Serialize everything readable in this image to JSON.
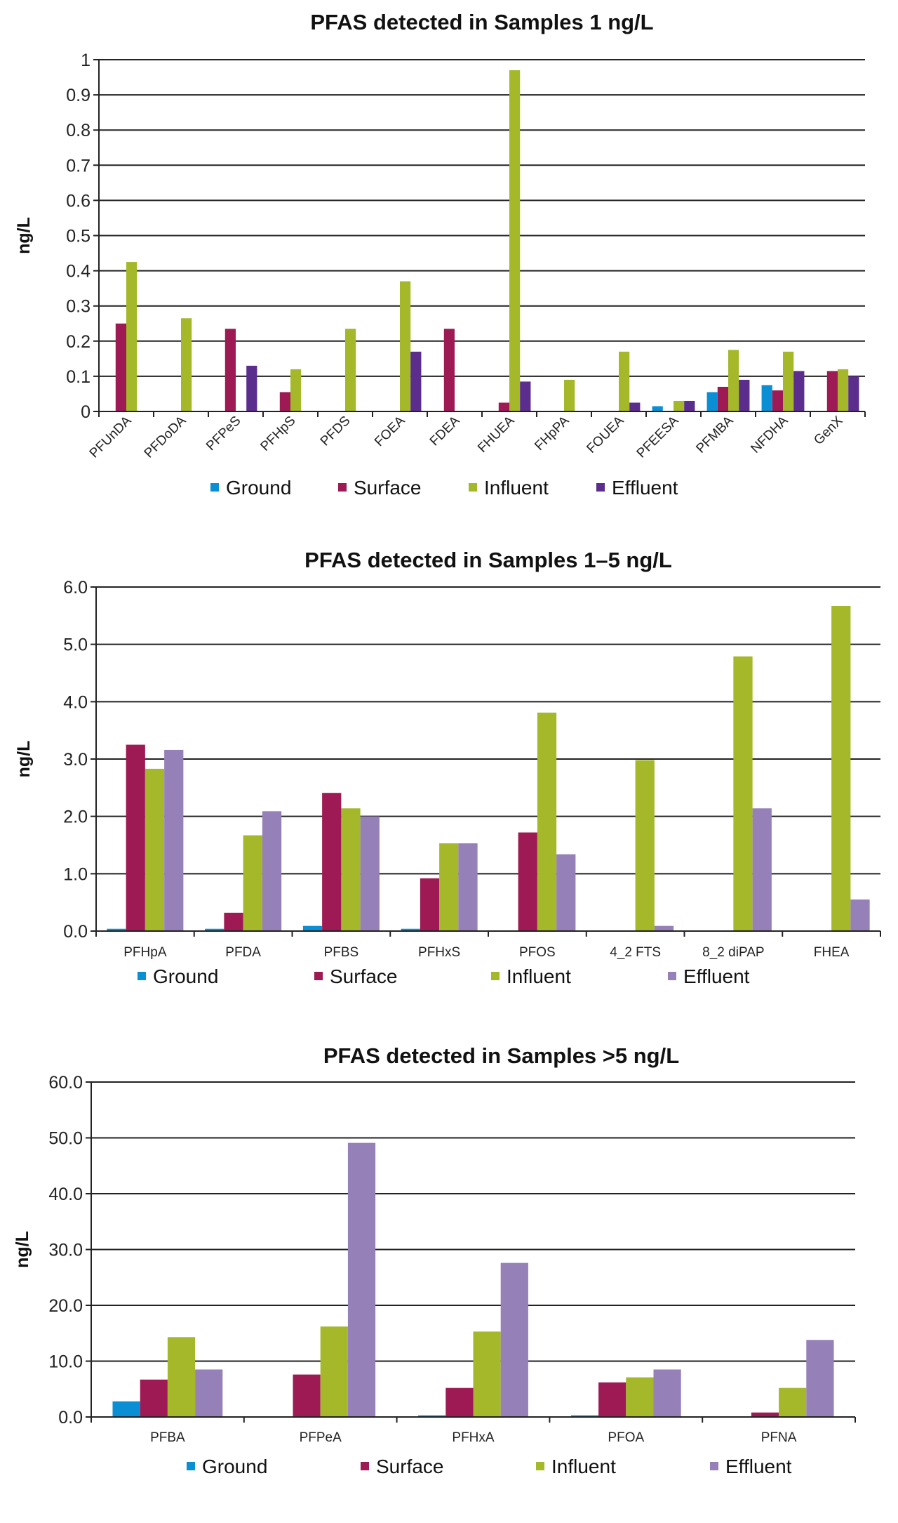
{
  "chart_data": [
    {
      "type": "bar",
      "title": "PFAS detected in Samples 1 ng/L",
      "ylabel": "ng/L",
      "ylim": [
        0,
        1
      ],
      "ytick_labels": [
        "0",
        "0.1",
        "0.2",
        "0.3",
        "0.4",
        "0.5",
        "0.6",
        "0.7",
        "0.8",
        "0.9",
        "1"
      ],
      "grid": true,
      "legend": "bottom",
      "x_label_rotation": "diagonal",
      "categories": [
        "PFUnDA",
        "PFDoDA",
        "PFPeS",
        "PFHpS",
        "PFDS",
        "FOEA",
        "FDEA",
        "FHUEA",
        "FHpPA",
        "FOUEA",
        "PFEESA",
        "PFMBA",
        "NFDHA",
        "GenX"
      ],
      "series": [
        {
          "name": "Ground",
          "color": "#0a8fd4",
          "values": [
            0,
            0,
            0,
            0,
            0,
            0,
            0,
            0,
            0,
            0,
            0.015,
            0.055,
            0.075,
            0
          ]
        },
        {
          "name": "Surface",
          "color": "#9e1a54",
          "values": [
            0.25,
            0,
            0.235,
            0.055,
            0,
            0,
            0.235,
            0.025,
            0,
            0,
            0,
            0.07,
            0.06,
            0.115
          ]
        },
        {
          "name": "Influent",
          "color": "#a4b82a",
          "values": [
            0.425,
            0.265,
            0,
            0.12,
            0.235,
            0.37,
            0,
            0.97,
            0.09,
            0.17,
            0.03,
            0.175,
            0.17,
            0.12
          ]
        },
        {
          "name": "Effluent",
          "color": "#5b2d8c",
          "values": [
            0,
            0,
            0.13,
            0,
            0,
            0.17,
            0,
            0.085,
            0,
            0.025,
            0.03,
            0.09,
            0.115,
            0.1
          ]
        }
      ]
    },
    {
      "type": "bar",
      "title": "PFAS detected in Samples 1–5  ng/L",
      "ylabel": "ng/L",
      "ylim": [
        0,
        6
      ],
      "ytick_labels": [
        "0.0",
        "1.0",
        "2.0",
        "3.0",
        "4.0",
        "5.0",
        "6.0"
      ],
      "grid": true,
      "legend": "bottom",
      "categories": [
        "PFHpA",
        "PFDA",
        "PFBS",
        "PFHxS",
        "PFOS",
        "4_2 FTS",
        "8_2 diPAP",
        "FHEA"
      ],
      "series": [
        {
          "name": "Ground",
          "color": "#0a8fd4",
          "values": [
            0.04,
            0.04,
            0.09,
            0.04,
            0,
            0,
            0,
            0
          ]
        },
        {
          "name": "Surface",
          "color": "#9e1a54",
          "values": [
            3.25,
            0.32,
            2.41,
            0.92,
            1.72,
            0,
            0,
            0
          ]
        },
        {
          "name": "Influent",
          "color": "#a4b82a",
          "values": [
            2.83,
            1.67,
            2.14,
            1.53,
            3.81,
            2.98,
            4.79,
            5.67
          ]
        },
        {
          "name": "Effluent",
          "color": "#9580b8",
          "values": [
            3.16,
            2.09,
            2.0,
            1.53,
            1.34,
            0.09,
            2.14,
            0.55
          ]
        }
      ]
    },
    {
      "type": "bar",
      "title": "PFAS detected in Samples >5 ng/L",
      "ylabel": "ng/L",
      "ylim": [
        0,
        60
      ],
      "ytick_labels": [
        "0.0",
        "10.0",
        "20.0",
        "30.0",
        "40.0",
        "50.0",
        "60.0"
      ],
      "grid": true,
      "legend": "bottom",
      "categories": [
        "PFBA",
        "PFPeA",
        "PFHxA",
        "PFOA",
        "PFNA"
      ],
      "series": [
        {
          "name": "Ground",
          "color": "#0a8fd4",
          "values": [
            2.8,
            0,
            0.3,
            0.3,
            0
          ]
        },
        {
          "name": "Surface",
          "color": "#9e1a54",
          "values": [
            6.7,
            7.6,
            5.2,
            6.2,
            0.8
          ]
        },
        {
          "name": "Influent",
          "color": "#a4b82a",
          "values": [
            14.3,
            16.2,
            15.3,
            7.1,
            5.2
          ]
        },
        {
          "name": "Effluent",
          "color": "#9580b8",
          "values": [
            8.5,
            49.1,
            27.6,
            8.5,
            13.8
          ]
        }
      ]
    }
  ]
}
